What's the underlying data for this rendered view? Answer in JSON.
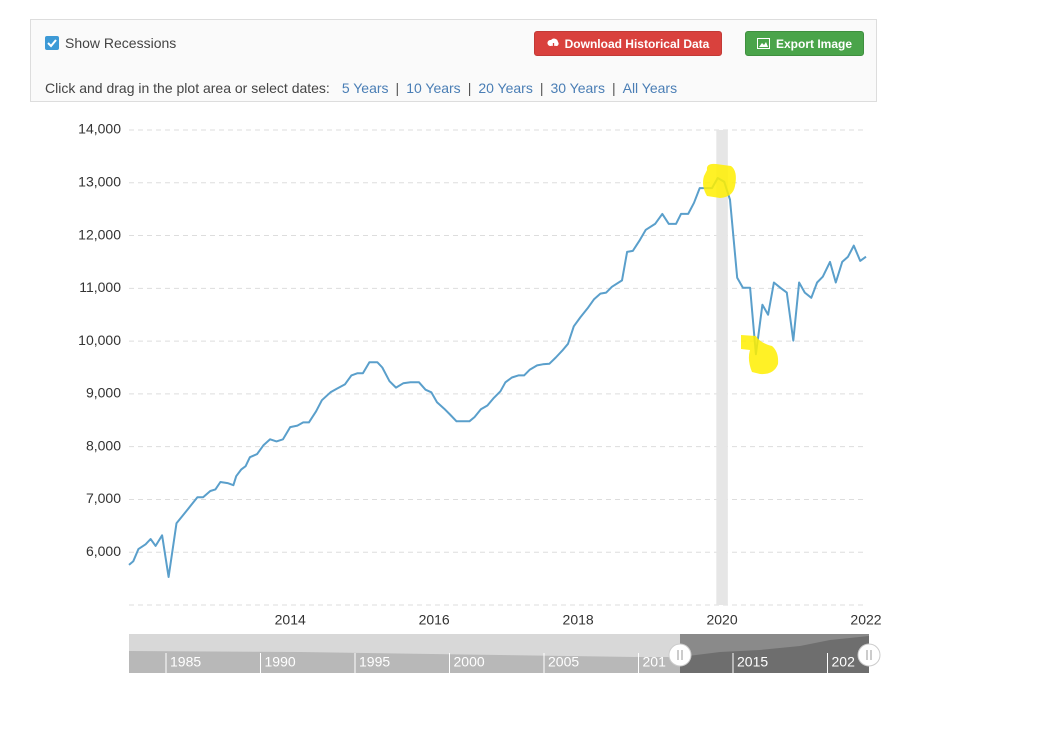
{
  "controls": {
    "show_recessions": true,
    "show_recessions_label": "Show Recessions",
    "download_button": "Download Historical Data",
    "export_button": "Export Image",
    "date_prompt": "Click and drag in the plot area or select dates:",
    "separator": "|",
    "date_links": [
      "5 Years",
      "10 Years",
      "20 Years",
      "30 Years",
      "All Years"
    ]
  },
  "chart_data": {
    "type": "line",
    "color": "#5a9fcb",
    "grid": true,
    "xlim": [
      2011.76,
      2022
    ],
    "xticks": [
      2014,
      2016,
      2018,
      2020,
      2022
    ],
    "ylim": [
      5000,
      14000
    ],
    "yticks": [
      {
        "value": 6000,
        "label": "6,000"
      },
      {
        "value": 7000,
        "label": "7,000"
      },
      {
        "value": 8000,
        "label": "8,000"
      },
      {
        "value": 9000,
        "label": "9,000"
      },
      {
        "value": 10000,
        "label": "10,000"
      },
      {
        "value": 11000,
        "label": "11,000"
      },
      {
        "value": 12000,
        "label": "12,000"
      },
      {
        "value": 13000,
        "label": "13,000"
      },
      {
        "value": 14000,
        "label": "14,000"
      }
    ],
    "recessions": [
      [
        2019.92,
        2020.08
      ]
    ],
    "x": [
      2011.76,
      2011.82,
      2011.89,
      2011.99,
      2012.06,
      2012.13,
      2012.22,
      2012.31,
      2012.42,
      2012.51,
      2012.61,
      2012.71,
      2012.79,
      2012.89,
      2012.96,
      2013.03,
      2013.13,
      2013.21,
      2013.25,
      2013.32,
      2013.38,
      2013.44,
      2013.54,
      2013.63,
      2013.72,
      2013.81,
      2013.9,
      2014.0,
      2014.1,
      2014.18,
      2014.26,
      2014.36,
      2014.44,
      2014.56,
      2014.65,
      2014.76,
      2014.85,
      2014.93,
      2015.01,
      2015.1,
      2015.21,
      2015.28,
      2015.38,
      2015.47,
      2015.57,
      2015.67,
      2015.79,
      2015.88,
      2015.96,
      2016.04,
      2016.14,
      2016.22,
      2016.31,
      2016.4,
      2016.49,
      2016.56,
      2016.65,
      2016.74,
      2016.82,
      2016.92,
      2016.99,
      2017.08,
      2017.17,
      2017.25,
      2017.33,
      2017.43,
      2017.51,
      2017.6,
      2017.69,
      2017.78,
      2017.86,
      2017.94,
      2018.03,
      2018.13,
      2018.22,
      2018.31,
      2018.39,
      2018.47,
      2018.61,
      2018.68,
      2018.76,
      2018.86,
      2018.94,
      2019.07,
      2019.17,
      2019.26,
      2019.36,
      2019.43,
      2019.53,
      2019.61,
      2019.69,
      2019.78,
      2019.86,
      2019.94,
      2020.03,
      2020.11,
      2020.21,
      2020.29,
      2020.39,
      2020.47,
      2020.56,
      2020.64,
      2020.72,
      2020.81,
      2020.9,
      2020.99,
      2021.07,
      2021.15,
      2021.24,
      2021.32,
      2021.4,
      2021.5,
      2021.58,
      2021.67,
      2021.75,
      2021.83,
      2021.92,
      2022.0
    ],
    "values": [
      5760,
      5830,
      6060,
      6150,
      6250,
      6120,
      6320,
      5530,
      6550,
      6700,
      6870,
      7040,
      7040,
      7160,
      7190,
      7330,
      7310,
      7270,
      7440,
      7570,
      7630,
      7800,
      7860,
      8030,
      8140,
      8100,
      8140,
      8370,
      8400,
      8460,
      8460,
      8670,
      8880,
      9030,
      9100,
      9180,
      9350,
      9390,
      9390,
      9600,
      9600,
      9500,
      9240,
      9120,
      9200,
      9220,
      9220,
      9080,
      9030,
      8840,
      8720,
      8610,
      8480,
      8480,
      8480,
      8560,
      8710,
      8780,
      8910,
      9050,
      9220,
      9310,
      9350,
      9350,
      9460,
      9540,
      9560,
      9570,
      9690,
      9820,
      9950,
      10280,
      10450,
      10620,
      10790,
      10900,
      10920,
      11030,
      11150,
      11690,
      11710,
      11920,
      12110,
      12220,
      12410,
      12220,
      12220,
      12410,
      12410,
      12620,
      12900,
      12900,
      12900,
      13090,
      13020,
      12680,
      11200,
      11010,
      11010,
      9750,
      10690,
      10500,
      11110,
      11010,
      10920,
      10010,
      11110,
      10920,
      10820,
      11110,
      11220,
      11500,
      11110,
      11500,
      11600,
      11810,
      11520,
      11600
    ]
  },
  "navigator": {
    "labels": [
      "1985",
      "1990",
      "1995",
      "2000",
      "2005",
      "201",
      "2015",
      "202"
    ]
  }
}
